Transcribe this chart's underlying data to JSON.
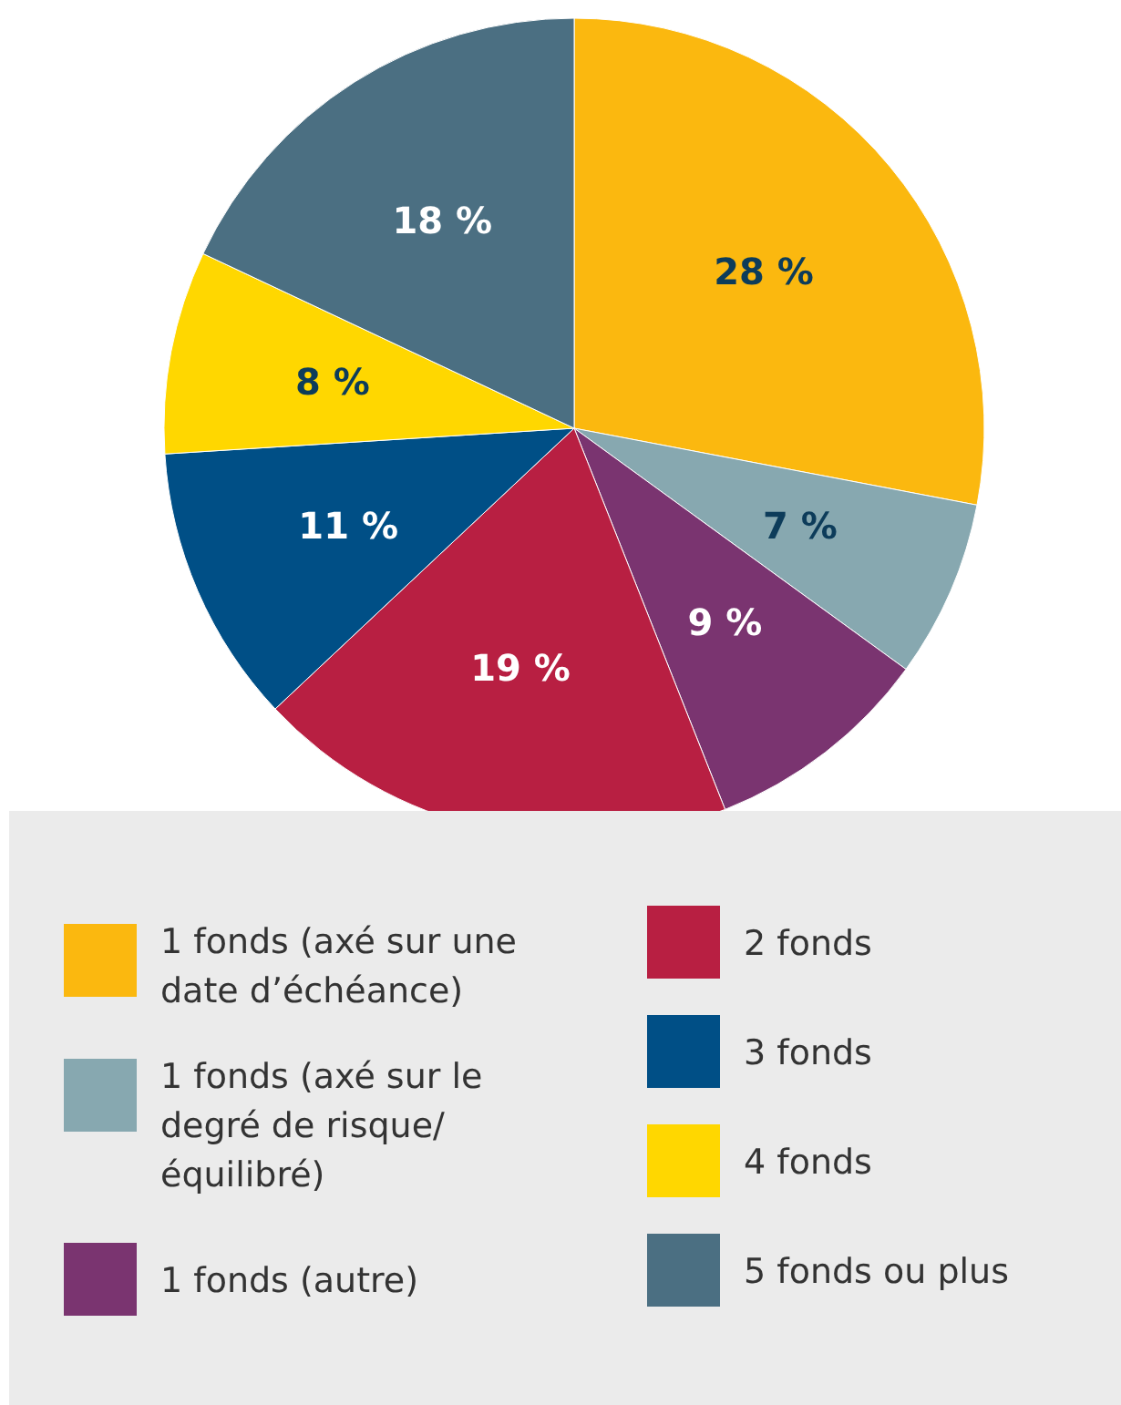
{
  "chart_data": {
    "type": "pie",
    "categories": [
      "1 fonds (axé sur une date d’échéance)",
      "1 fonds (axé sur le degré de risque/ équilibré)",
      "1 fonds (autre)",
      "2 fonds",
      "3 fonds",
      "4 fonds",
      "5 fonds ou plus"
    ],
    "values": [
      28,
      7,
      9,
      19,
      11,
      8,
      18
    ],
    "value_labels": [
      "28 %",
      "7 %",
      "9 %",
      "19 %",
      "11 %",
      "8 %",
      "18 %"
    ],
    "colors": [
      "#fbb80f",
      "#87a8b0",
      "#7a3470",
      "#b81f42",
      "#004f86",
      "#ffd700",
      "#4b6f82"
    ],
    "legend": "bottom"
  }
}
